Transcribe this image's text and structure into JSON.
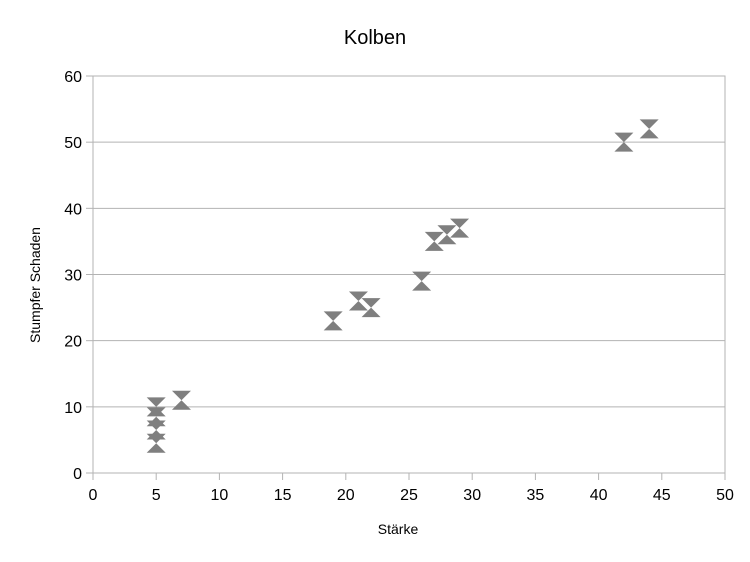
{
  "chart_data": {
    "type": "scatter",
    "title": "Kolben",
    "xlabel": "Stärke",
    "ylabel": "Stumpfer Schaden",
    "xlim": [
      0,
      50
    ],
    "ylim": [
      0,
      60
    ],
    "xticks": [
      "0",
      "5",
      "10",
      "15",
      "20",
      "25",
      "30",
      "35",
      "40",
      "45",
      "50"
    ],
    "yticks": [
      "0",
      "10",
      "20",
      "30",
      "40",
      "50",
      "60"
    ],
    "grid": "horizontal",
    "legend": "none",
    "marker": "hourglass",
    "marker_color": "#7f7f7f",
    "points": [
      {
        "x": 5,
        "y": 4.5
      },
      {
        "x": 5,
        "y": 6.5
      },
      {
        "x": 5,
        "y": 8.5
      },
      {
        "x": 5,
        "y": 10
      },
      {
        "x": 7,
        "y": 11
      },
      {
        "x": 19,
        "y": 23
      },
      {
        "x": 21,
        "y": 26
      },
      {
        "x": 22,
        "y": 25
      },
      {
        "x": 26,
        "y": 29
      },
      {
        "x": 27,
        "y": 35
      },
      {
        "x": 28,
        "y": 36
      },
      {
        "x": 29,
        "y": 37
      },
      {
        "x": 42,
        "y": 50
      },
      {
        "x": 44,
        "y": 52
      }
    ]
  }
}
